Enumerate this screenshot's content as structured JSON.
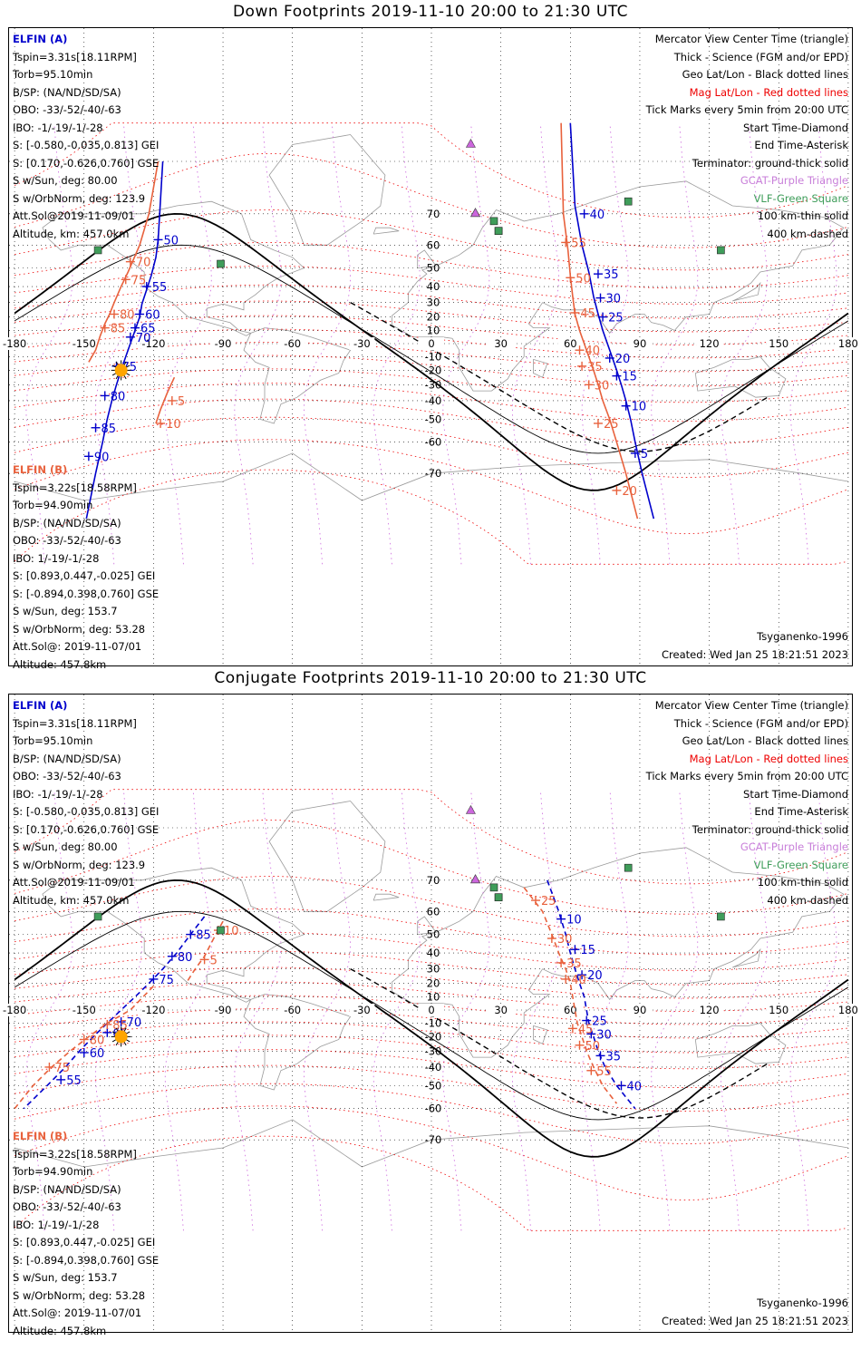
{
  "panels": [
    {
      "title": "Down Footprints 2019-11-10 20:00 to 21:30 UTC",
      "sc_a": {
        "name": "ELFIN (A)",
        "lines": [
          "Tspin=3.31s[18.11RPM]",
          "Torb=95.10min",
          "B/SP: (NA/ND/SD/SA)",
          "OBO: -33/-52/-40/-63",
          "IBO: -1/-19/-1/-28",
          "S: [-0.580,-0.035,0.813] GEI",
          "S: [0.170,-0.626,0.760] GSE",
          "S w/Sun, deg: 80.00",
          "S w/OrbNorm, deg: 123.9",
          "Att.Sol@2019-11-09/01",
          "Altitude, km: 457.0km"
        ]
      },
      "sc_b": {
        "name": "ELFIN (B)",
        "lines": [
          "Tspin=3.22s[18.58RPM]",
          "Torb=94.90min",
          "B/SP: (NA/ND/SD/SA)",
          "OBO: -33/-52/-40/-63",
          "IBO: 1/-19/-1/-28",
          "S: [0.893,0.447,-0.025] GEI",
          "S: [-0.894,0.398,0.760] GSE",
          "S w/Sun, deg: 153.7",
          "S w/OrbNorm, deg: 53.28",
          "Att.Sol@: 2019-11-07/01",
          "Altitude: 457.8km"
        ]
      },
      "model": "Tsyganenko-1996",
      "created": "Created: Wed Jan 25 18:21:51 2023",
      "a_track": [
        [
          -116,
          80
        ],
        [
          -118,
          62
        ],
        [
          -119,
          55
        ],
        [
          -121,
          46
        ],
        [
          -123,
          38
        ],
        [
          -125,
          29
        ],
        [
          -126,
          20
        ],
        [
          -128,
          10
        ],
        [
          -130,
          0
        ],
        [
          -132,
          -10
        ],
        [
          -134,
          -20
        ],
        [
          -136,
          -30
        ],
        [
          -138,
          -40
        ],
        [
          -140,
          -50
        ],
        [
          -142,
          -60
        ],
        [
          -145,
          -70
        ],
        [
          -149,
          -79
        ]
      ],
      "a_ticks": [
        {
          "t": "50",
          "lon": -118,
          "lat": 62
        },
        {
          "t": "55",
          "lon": -123,
          "lat": 40
        },
        {
          "t": "60",
          "lon": -126,
          "lat": 22
        },
        {
          "t": "65",
          "lon": -128,
          "lat": 12
        },
        {
          "t": "70",
          "lon": -130,
          "lat": 5
        },
        {
          "t": "75",
          "lon": -136,
          "lat": -17
        },
        {
          "t": "80",
          "lon": -141,
          "lat": -37
        },
        {
          "t": "85",
          "lon": -145,
          "lat": -54
        },
        {
          "t": "90",
          "lon": -148,
          "lat": -65
        }
      ],
      "b_track": [
        [
          -118,
          80
        ],
        [
          -122,
          70
        ],
        [
          -126,
          60
        ],
        [
          -131,
          48
        ],
        [
          -134,
          40
        ],
        [
          -137,
          30
        ],
        [
          -139,
          22
        ],
        [
          -141,
          15
        ],
        [
          -143,
          6
        ],
        [
          -145,
          -5
        ],
        [
          -148,
          -14
        ]
      ],
      "b_ticks": [
        {
          "t": "70",
          "lon": -130,
          "lat": 53
        },
        {
          "t": "75",
          "lon": -132,
          "lat": 44
        },
        {
          "t": "80",
          "lon": -137,
          "lat": 22
        },
        {
          "t": "85",
          "lon": -141,
          "lat": 12
        }
      ],
      "b_track2": [
        [
          -111,
          -25
        ],
        [
          -114,
          -35
        ],
        [
          -117,
          -45
        ],
        [
          -119,
          -52
        ]
      ],
      "b_ticks2": [
        {
          "t": "5",
          "lon": -112,
          "lat": -40
        },
        {
          "t": "10",
          "lon": -117,
          "lat": -52
        }
      ],
      "a_track_e": [
        [
          60,
          84
        ],
        [
          62,
          72
        ],
        [
          65,
          60
        ],
        [
          68,
          48
        ],
        [
          70,
          34
        ],
        [
          72,
          22
        ],
        [
          74,
          10
        ],
        [
          76,
          0
        ],
        [
          78,
          -10
        ],
        [
          80,
          -20
        ],
        [
          82,
          -30
        ],
        [
          84,
          -40
        ],
        [
          86,
          -50
        ],
        [
          88,
          -60
        ],
        [
          91,
          -70
        ],
        [
          96,
          -79
        ]
      ],
      "a_ticks_e": [
        {
          "t": "40",
          "lon": 66,
          "lat": 70
        },
        {
          "t": "35",
          "lon": 72,
          "lat": 47
        },
        {
          "t": "30",
          "lon": 73,
          "lat": 33
        },
        {
          "t": "25",
          "lon": 74,
          "lat": 20
        },
        {
          "t": "20",
          "lon": 77,
          "lat": -11
        },
        {
          "t": "15",
          "lon": 80,
          "lat": -24
        },
        {
          "t": "10",
          "lon": 84,
          "lat": -43
        },
        {
          "t": "5",
          "lon": 88,
          "lat": -64
        }
      ],
      "b_track_e": [
        [
          56,
          84
        ],
        [
          57,
          70
        ],
        [
          59,
          58
        ],
        [
          60,
          46
        ],
        [
          61,
          34
        ],
        [
          62,
          22
        ],
        [
          64,
          10
        ],
        [
          66,
          0
        ],
        [
          68,
          -10
        ],
        [
          70,
          -20
        ],
        [
          72,
          -30
        ],
        [
          74,
          -40
        ],
        [
          77,
          -50
        ],
        [
          80,
          -60
        ],
        [
          84,
          -70
        ],
        [
          89,
          -79
        ]
      ],
      "b_ticks_e": [
        {
          "t": "55",
          "lon": 58,
          "lat": 61
        },
        {
          "t": "50",
          "lon": 60,
          "lat": 45
        },
        {
          "t": "45",
          "lon": 62,
          "lat": 23
        },
        {
          "t": "40",
          "lon": 64,
          "lat": -5
        },
        {
          "t": "35",
          "lon": 65,
          "lat": -17
        },
        {
          "t": "30",
          "lon": 68,
          "lat": -30
        },
        {
          "t": "25",
          "lon": 72,
          "lat": -52
        },
        {
          "t": "20",
          "lon": 80,
          "lat": -74
        }
      ]
    },
    {
      "title": "Conjugate Footprints 2019-11-10 20:00 to 21:30 UTC",
      "sc_a": {
        "name": "ELFIN (A)",
        "lines": [
          "Tspin=3.31s[18.11RPM]",
          "Torb=95.10min",
          "B/SP: (NA/ND/SD/SA)",
          "OBO: -33/-52/-40/-63",
          "IBO: -1/-19/-1/-28",
          "S: [-0.580,-0.035,0.813] GEI",
          "S: [0.170,-0.626,0.760] GSE",
          "S w/Sun, deg: 80.00",
          "S w/OrbNorm, deg: 123.9",
          "Att.Sol@2019-11-09/01",
          "Altitude, km: 457.0km"
        ]
      },
      "sc_b": {
        "name": "ELFIN (B)",
        "lines": [
          "Tspin=3.22s[18.58RPM]",
          "Torb=94.90min",
          "B/SP: (NA/ND/SD/SA)",
          "OBO: -33/-52/-40/-63",
          "IBO: 1/-19/-1/-28",
          "S: [0.893,0.447,-0.025] GEI",
          "S: [-0.894,0.398,0.760] GSE",
          "S w/Sun, deg: 153.7",
          "S w/OrbNorm, deg: 53.28",
          "Att.Sol@: 2019-11-07/01",
          "Altitude: 457.8km"
        ]
      },
      "model": "Tsyganenko-1996",
      "created": "Created: Wed Jan 25 18:21:51 2023",
      "a_track": [
        [
          -98,
          58
        ],
        [
          -104,
          50
        ],
        [
          -110,
          40
        ],
        [
          -116,
          30
        ],
        [
          -122,
          20
        ],
        [
          -128,
          10
        ],
        [
          -134,
          0
        ],
        [
          -140,
          -10
        ],
        [
          -146,
          -20
        ],
        [
          -152,
          -30
        ],
        [
          -158,
          -40
        ],
        [
          -166,
          -50
        ],
        [
          -176,
          -60
        ]
      ],
      "a_ticks": [
        {
          "t": "85",
          "lon": -104,
          "lat": 50
        },
        {
          "t": "80",
          "lon": -112,
          "lat": 38
        },
        {
          "t": "75",
          "lon": -120,
          "lat": 23
        },
        {
          "t": "70",
          "lon": -134,
          "lat": -9
        },
        {
          "t": "65",
          "lon": -140,
          "lat": -17
        },
        {
          "t": "60",
          "lon": -150,
          "lat": -31
        },
        {
          "t": "55",
          "lon": -160,
          "lat": -47
        }
      ],
      "b_track": [
        [
          -90,
          56
        ],
        [
          -94,
          48
        ],
        [
          -98,
          38
        ],
        [
          -102,
          30
        ],
        [
          -106,
          20
        ]
      ],
      "b_ticks": [
        {
          "t": "10",
          "lon": -92,
          "lat": 52
        },
        {
          "t": "5",
          "lon": -98,
          "lat": 36
        }
      ],
      "b_track2": [
        [
          -120,
          18
        ],
        [
          -130,
          0
        ],
        [
          -140,
          -10
        ],
        [
          -148,
          -20
        ],
        [
          -156,
          -30
        ],
        [
          -164,
          -40
        ],
        [
          -172,
          -50
        ],
        [
          -180,
          -60
        ]
      ],
      "b_ticks2": [
        {
          "t": "85",
          "lon": -140,
          "lat": -11
        },
        {
          "t": "80",
          "lon": -150,
          "lat": -22
        },
        {
          "t": "75",
          "lon": -165,
          "lat": -40
        }
      ],
      "a_track_e": [
        [
          50,
          70
        ],
        [
          55,
          60
        ],
        [
          58,
          50
        ],
        [
          60,
          40
        ],
        [
          62,
          30
        ],
        [
          64,
          20
        ],
        [
          66,
          10
        ],
        [
          67,
          0
        ],
        [
          68,
          -10
        ],
        [
          70,
          -20
        ],
        [
          72,
          -30
        ],
        [
          75,
          -40
        ],
        [
          80,
          -50
        ],
        [
          88,
          -60
        ]
      ],
      "a_ticks_e": [
        {
          "t": "10",
          "lon": 56,
          "lat": 57
        },
        {
          "t": "15",
          "lon": 62,
          "lat": 42
        },
        {
          "t": "20",
          "lon": 65,
          "lat": 26
        },
        {
          "t": "25",
          "lon": 67,
          "lat": -8
        },
        {
          "t": "30",
          "lon": 69,
          "lat": -18
        },
        {
          "t": "35",
          "lon": 73,
          "lat": -33
        },
        {
          "t": "40",
          "lon": 82,
          "lat": -50
        }
      ],
      "b_track_e": [
        [
          40,
          68
        ],
        [
          48,
          60
        ],
        [
          52,
          50
        ],
        [
          55,
          40
        ],
        [
          58,
          30
        ],
        [
          60,
          20
        ],
        [
          61,
          10
        ],
        [
          62,
          0
        ],
        [
          63,
          -10
        ],
        [
          65,
          -20
        ],
        [
          67,
          -30
        ],
        [
          70,
          -40
        ],
        [
          74,
          -50
        ],
        [
          80,
          -58
        ]
      ],
      "b_ticks_e": [
        {
          "t": "25",
          "lon": 45,
          "lat": 64
        },
        {
          "t": "30",
          "lon": 52,
          "lat": 48
        },
        {
          "t": "35",
          "lon": 56,
          "lat": 34
        },
        {
          "t": "40",
          "lon": 58,
          "lat": 23
        },
        {
          "t": "45",
          "lon": 61,
          "lat": -14
        },
        {
          "t": "50",
          "lon": 64,
          "lat": -26
        },
        {
          "t": "55",
          "lon": 69,
          "lat": -42
        }
      ]
    }
  ],
  "legend": {
    "view": "Mercator View Center Time (triangle)",
    "science": "Thick - Science (FGM and/or EPD)",
    "geo": "Geo Lat/Lon - Black dotted lines",
    "mag": "Mag Lat/Lon - Red dotted lines",
    "ticks": "Tick Marks every 5min from 20:00 UTC",
    "start": "Start Time-Diamond",
    "end": "End Time-Asterisk",
    "terminator": "Terminator: ground-thick solid",
    "riometer": "GCAT-Purple Triangle",
    "vlf": "VLF-Green Square",
    "km100": "100 km-thin solid",
    "km400": "400 km-dashed"
  },
  "axis": {
    "lon_labels": [
      "-180",
      "-150",
      "-120",
      "-90",
      "-60",
      "-30",
      "0",
      "30",
      "60",
      "90",
      "120",
      "150",
      "180"
    ],
    "lat_labels": [
      "70",
      "60",
      "50",
      "40",
      "30",
      "20",
      "10",
      "-10",
      "-20",
      "-30",
      "-40",
      "-50",
      "-60",
      "-70"
    ]
  },
  "colors": {
    "spacecraft_a": "#0000cc",
    "spacecraft_b": "#e8613c",
    "mag_grid": "#ee0000",
    "geo_grid": "#000000",
    "gcat": "#cc66dd",
    "vlf": "#3f9d5a",
    "sun": "#ffa500"
  },
  "markers": {
    "gcat": [
      [
        17,
        82
      ],
      [
        19,
        70
      ],
      [
        19,
        70
      ]
    ],
    "vlf": [
      [
        -144,
        58
      ],
      [
        -91,
        52
      ],
      [
        27,
        68
      ],
      [
        29,
        65
      ],
      [
        29,
        65
      ],
      [
        85,
        73
      ],
      [
        125,
        58
      ]
    ],
    "sun": [
      -134,
      -20
    ]
  }
}
